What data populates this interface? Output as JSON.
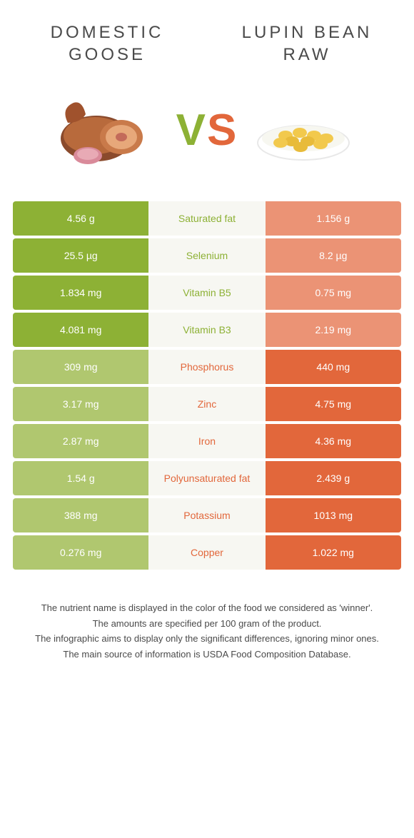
{
  "food_left": {
    "title": "DOMESTIC GOOSE"
  },
  "food_right": {
    "title": "LUPIN BEAN RAW"
  },
  "vs": {
    "v": "V",
    "s": "S"
  },
  "colors": {
    "left_win": "#8db135",
    "left_lose": "#b0c76f",
    "right_win": "#e2673b",
    "right_lose": "#eb9375",
    "mid_text_left": "#8db135",
    "mid_text_right": "#e2673b"
  },
  "rows": [
    {
      "left": "4.56 g",
      "label": "Saturated fat",
      "right": "1.156 g",
      "winner": "left"
    },
    {
      "left": "25.5 µg",
      "label": "Selenium",
      "right": "8.2 µg",
      "winner": "left"
    },
    {
      "left": "1.834 mg",
      "label": "Vitamin B5",
      "right": "0.75 mg",
      "winner": "left"
    },
    {
      "left": "4.081 mg",
      "label": "Vitamin B3",
      "right": "2.19 mg",
      "winner": "left"
    },
    {
      "left": "309 mg",
      "label": "Phosphorus",
      "right": "440 mg",
      "winner": "right"
    },
    {
      "left": "3.17 mg",
      "label": "Zinc",
      "right": "4.75 mg",
      "winner": "right"
    },
    {
      "left": "2.87 mg",
      "label": "Iron",
      "right": "4.36 mg",
      "winner": "right"
    },
    {
      "left": "1.54 g",
      "label": "Polyunsaturated fat",
      "right": "2.439 g",
      "winner": "right"
    },
    {
      "left": "388 mg",
      "label": "Potassium",
      "right": "1013 mg",
      "winner": "right"
    },
    {
      "left": "0.276 mg",
      "label": "Copper",
      "right": "1.022 mg",
      "winner": "right"
    }
  ],
  "footer": {
    "line1": "The nutrient name is displayed in the color of the food we considered as 'winner'.",
    "line2": "The amounts are specified per 100 gram of the product.",
    "line3": "The infographic aims to display only the significant differences, ignoring minor ones.",
    "line4": "The main source of information is USDA Food Composition Database."
  }
}
